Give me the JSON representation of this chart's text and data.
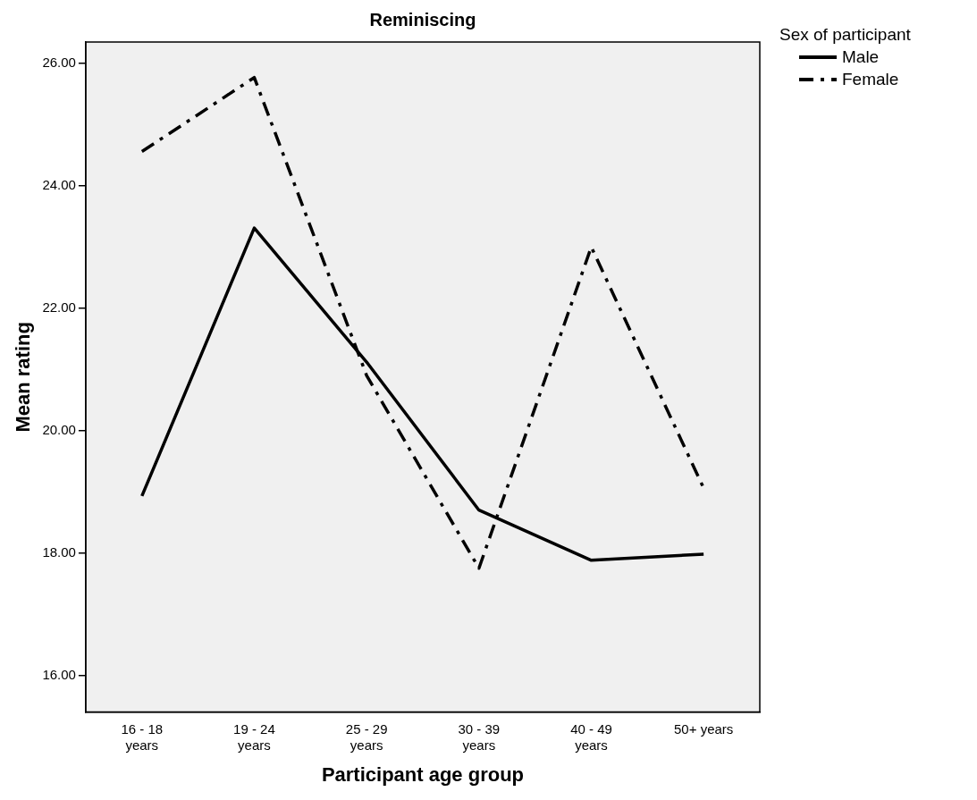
{
  "chart_data": {
    "type": "line",
    "title": "Reminiscing",
    "xlabel": "Participant age group",
    "ylabel": "Mean rating",
    "legend_title": "Sex of participant",
    "categories": [
      "16 - 18 years",
      "19 - 24 years",
      "25 - 29 years",
      "30 - 39 years",
      "40 - 49 years",
      "50+ years"
    ],
    "series": [
      {
        "name": "Male",
        "color": "#000000",
        "line_style": "solid",
        "values": [
          18.93,
          23.31,
          21.12,
          18.7,
          17.88,
          17.98
        ]
      },
      {
        "name": "Female",
        "color": "#000000",
        "line_style": "dashdot",
        "values": [
          24.56,
          25.77,
          20.9,
          17.75,
          23.0,
          19.06
        ]
      }
    ],
    "ylim": [
      15.4,
      26.35
    ],
    "yticks": [
      {
        "value": 16,
        "label": "16.00"
      },
      {
        "value": 18,
        "label": "18.00"
      },
      {
        "value": 20,
        "label": "20.00"
      },
      {
        "value": 22,
        "label": "22.00"
      },
      {
        "value": 24,
        "label": "24.00"
      },
      {
        "value": 26,
        "label": "26.00"
      }
    ],
    "grid": false,
    "legend": "top right",
    "marker": "none"
  }
}
